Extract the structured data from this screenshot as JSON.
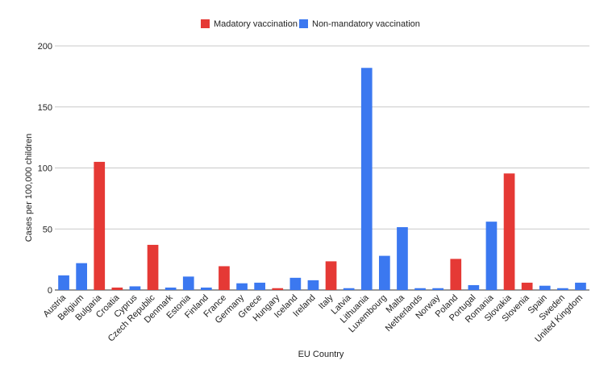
{
  "chart_data": {
    "type": "bar",
    "title": "",
    "xlabel": "EU Country",
    "ylabel": "Cases per 100,000 children",
    "ylim": [
      0,
      200
    ],
    "yticks": [
      0,
      50,
      100,
      150,
      200
    ],
    "grid": true,
    "legend_position": "top-center",
    "legend": [
      {
        "key": "mandatory",
        "label": "Madatory vaccination",
        "color": "#e53935"
      },
      {
        "key": "non_mandatory",
        "label": "Non-mandatory vaccination",
        "color": "#3b78f0"
      }
    ],
    "bars": [
      {
        "country": "Austria",
        "value": 12,
        "group": "non_mandatory"
      },
      {
        "country": "Belgium",
        "value": 22,
        "group": "non_mandatory"
      },
      {
        "country": "Bulgaria",
        "value": 105,
        "group": "mandatory"
      },
      {
        "country": "Croatia",
        "value": 2,
        "group": "mandatory"
      },
      {
        "country": "Cyprus",
        "value": 3,
        "group": "non_mandatory"
      },
      {
        "country": "Czech Republic",
        "value": 37,
        "group": "mandatory"
      },
      {
        "country": "Denmark",
        "value": 2,
        "group": "non_mandatory"
      },
      {
        "country": "Estonia",
        "value": 11,
        "group": "non_mandatory"
      },
      {
        "country": "Finland",
        "value": 2,
        "group": "non_mandatory"
      },
      {
        "country": "France",
        "value": 19.5,
        "group": "mandatory"
      },
      {
        "country": "Germany",
        "value": 5.5,
        "group": "non_mandatory"
      },
      {
        "country": "Greece",
        "value": 6,
        "group": "non_mandatory"
      },
      {
        "country": "Hungary",
        "value": 1.5,
        "group": "mandatory"
      },
      {
        "country": "Iceland",
        "value": 10,
        "group": "non_mandatory"
      },
      {
        "country": "Ireland",
        "value": 8,
        "group": "non_mandatory"
      },
      {
        "country": "Italy",
        "value": 23.5,
        "group": "mandatory"
      },
      {
        "country": "Latvia",
        "value": 1.5,
        "group": "non_mandatory"
      },
      {
        "country": "Lithuania",
        "value": 182,
        "group": "non_mandatory"
      },
      {
        "country": "Luxembourg",
        "value": 28,
        "group": "non_mandatory"
      },
      {
        "country": "Malta",
        "value": 51.5,
        "group": "non_mandatory"
      },
      {
        "country": "Netherlands",
        "value": 1.5,
        "group": "non_mandatory"
      },
      {
        "country": "Norway",
        "value": 1.5,
        "group": "non_mandatory"
      },
      {
        "country": "Poland",
        "value": 25.5,
        "group": "mandatory"
      },
      {
        "country": "Portugal",
        "value": 4,
        "group": "non_mandatory"
      },
      {
        "country": "Romania",
        "value": 56,
        "group": "non_mandatory"
      },
      {
        "country": "Slovakia",
        "value": 95.5,
        "group": "mandatory"
      },
      {
        "country": "Slovenia",
        "value": 6,
        "group": "mandatory"
      },
      {
        "country": "Spain",
        "value": 3.5,
        "group": "non_mandatory"
      },
      {
        "country": "Sweden",
        "value": 1.5,
        "group": "non_mandatory"
      },
      {
        "country": "United Kingdom",
        "value": 6,
        "group": "non_mandatory"
      }
    ]
  }
}
